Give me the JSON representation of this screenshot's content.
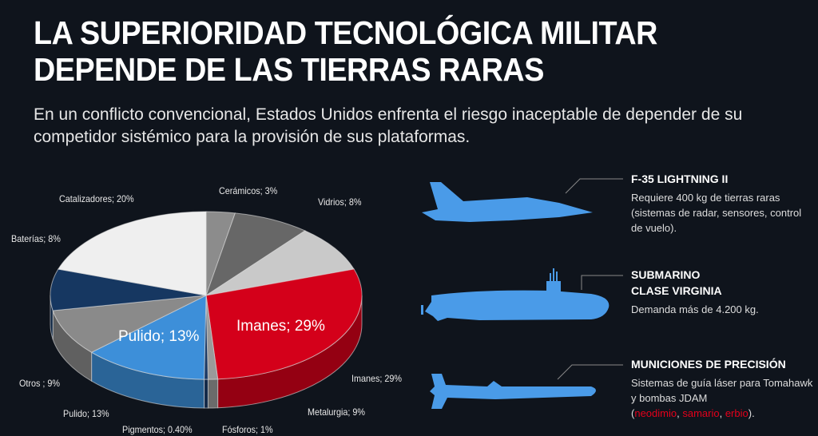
{
  "title_line1": "LA SUPERIORIDAD TECNOLÓGICA MILITAR",
  "title_line2": "DEPENDE DE LAS TIERRAS RARAS",
  "subtitle": "En un conflicto convencional, Estados Unidos enfrenta el riesgo inaceptable de depender de su competidor sistémico para la provisión de sus plataformas.",
  "chart_data": {
    "type": "pie",
    "style": "3d",
    "slices": [
      {
        "label": "Cerámicos; 3%",
        "name": "Cerámicos",
        "value": 3,
        "color": "#8c8c8c"
      },
      {
        "label": "Vidrios; 8%",
        "name": "Vidrios",
        "value": 8,
        "color": "#676767"
      },
      {
        "label": "Metalurgia; 9%",
        "name": "Metalurgia",
        "value": 9,
        "color": "#c9c9c9"
      },
      {
        "label": "Imanes; 29%",
        "name": "Imanes",
        "value": 29,
        "color": "#d4001a",
        "inner_label": "Imanes; 29%"
      },
      {
        "label": "Fósforos; 1%",
        "name": "Fósforos",
        "value": 1,
        "color": "#9a9a9a"
      },
      {
        "label": "Pigmentos; 0.40%",
        "name": "Pigmentos",
        "value": 0.4,
        "color": "#1b3a66"
      },
      {
        "label": "Pulido; 13%",
        "name": "Pulido",
        "value": 13,
        "color": "#3d8fd9",
        "inner_label": "Pulido; 13%"
      },
      {
        "label": "Otros ; 9%",
        "name": "Otros",
        "value": 9,
        "color": "#8a8a8a"
      },
      {
        "label": "Baterías; 8%",
        "name": "Baterías",
        "value": 8,
        "color": "#163761"
      },
      {
        "label": "Catalizadores; 20%",
        "name": "Catalizadores",
        "value": 20,
        "color": "#efefef"
      }
    ]
  },
  "platforms": [
    {
      "icon": "fighter-jet-icon",
      "title": "F-35 LIGHTNING II",
      "desc": "Requiere 400 kg de tierras raras (sistemas de radar, sensores, control de vuelo)."
    },
    {
      "icon": "submarine-icon",
      "title_line1": "SUBMARINO",
      "title_line2": "CLASE VIRGINIA",
      "desc": "Demanda más de 4.200 kg."
    },
    {
      "icon": "missile-icon",
      "title": "MUNICIONES DE PRECISIÓN",
      "desc": "Sistemas de guía láser para Tomahawk y bombas JDAM",
      "open": "(",
      "elements": [
        "neodimio",
        "samario",
        "erbio"
      ],
      "sep": ", ",
      "close": ")."
    }
  ],
  "colors": {
    "background": "#0f141c",
    "silhouette": "#4a9be8",
    "highlight": "#e3001b"
  }
}
